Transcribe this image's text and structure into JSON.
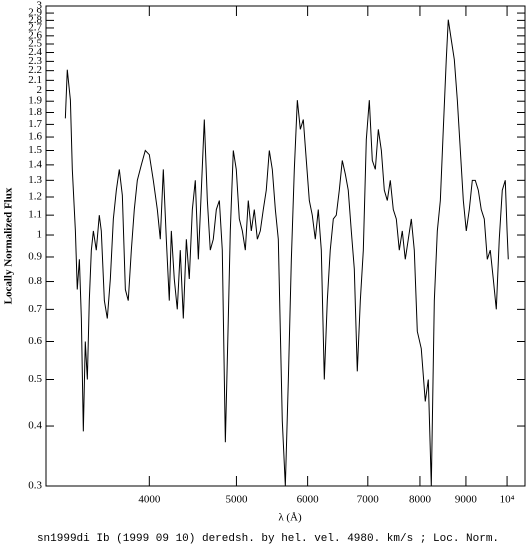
{
  "chart_data": {
    "type": "line",
    "title": "sn1999di Ib (1999 09 10) deredsh. by hel. vel.  4980. km/s ;  Loc. Norm.",
    "xlabel": "λ (Å)",
    "ylabel": "Locally Normalized Flux",
    "xscale": "log",
    "yscale": "log",
    "xlim": [
      3070,
      10470
    ],
    "ylim": [
      0.3,
      3
    ],
    "xticks": [
      4000,
      5000,
      6000,
      7000,
      8000,
      9000,
      {
        "value": 10000,
        "label": "10⁴"
      }
    ],
    "yticks": [
      0.3,
      0.4,
      0.5,
      0.6,
      0.7,
      0.8,
      0.9,
      1,
      1.1,
      1.2,
      1.3,
      1.4,
      1.5,
      1.6,
      1.7,
      1.8,
      1.9,
      2,
      2.1,
      2.2,
      2.3,
      2.4,
      2.5,
      2.6,
      2.7,
      2.8,
      2.9,
      3
    ],
    "x": [
      3226,
      3242,
      3268,
      3284,
      3310,
      3326,
      3344,
      3361,
      3378,
      3395,
      3413,
      3430,
      3448,
      3466,
      3492,
      3519,
      3537,
      3565,
      3592,
      3620,
      3648,
      3676,
      3704,
      3733,
      3762,
      3790,
      3820,
      3849,
      3879,
      3919,
      3959,
      4000,
      4041,
      4083,
      4114,
      4146,
      4178,
      4210,
      4232,
      4264,
      4297,
      4330,
      4364,
      4398,
      4431,
      4466,
      4500,
      4535,
      4570,
      4605,
      4641,
      4676,
      4712,
      4749,
      4786,
      4822,
      4860,
      4897,
      4922,
      4960,
      4998,
      5037,
      5076,
      5115,
      5154,
      5194,
      5234,
      5275,
      5315,
      5356,
      5397,
      5439,
      5481,
      5524,
      5566,
      5623,
      5667,
      5711,
      5755,
      5799,
      5844,
      5889,
      5934,
      5980,
      6026,
      6072,
      6119,
      6166,
      6214,
      6262,
      6310,
      6358,
      6408,
      6457,
      6507,
      6557,
      6608,
      6658,
      6710,
      6762,
      6814,
      6867,
      6920,
      6973,
      7027,
      7081,
      7136,
      7191,
      7247,
      7302,
      7358,
      7415,
      7472,
      7530,
      7588,
      7646,
      7705,
      7765,
      7825,
      7885,
      7946,
      8027,
      8110,
      8173,
      8236,
      8300,
      8364,
      8429,
      8493,
      8558,
      8602,
      8669,
      8736,
      8804,
      8872,
      8940,
      9008,
      9078,
      9148,
      9218,
      9290,
      9360,
      9433,
      9506,
      9579,
      9653,
      9728,
      9802,
      9878,
      9954,
      10000,
      10031
    ],
    "series": [
      {
        "color": "#000000",
        "values": [
          1.75,
          2.21,
          1.91,
          1.37,
          1.02,
          0.77,
          0.89,
          0.67,
          0.39,
          0.6,
          0.5,
          0.73,
          0.93,
          1.02,
          0.93,
          1.1,
          1.02,
          0.73,
          0.67,
          0.81,
          1.08,
          1.24,
          1.37,
          1.21,
          0.77,
          0.73,
          0.93,
          1.13,
          1.3,
          1.4,
          1.5,
          1.47,
          1.3,
          1.13,
          0.98,
          1.37,
          0.98,
          0.73,
          1.02,
          0.81,
          0.7,
          0.93,
          0.67,
          0.98,
          0.81,
          1.13,
          1.3,
          0.89,
          1.24,
          1.74,
          1.18,
          0.93,
          0.98,
          1.13,
          1.18,
          0.93,
          0.37,
          0.67,
          1.02,
          1.5,
          1.37,
          1.08,
          1.02,
          0.93,
          1.18,
          1.02,
          1.13,
          0.98,
          1.02,
          1.13,
          1.24,
          1.5,
          1.37,
          1.13,
          0.98,
          0.41,
          0.3,
          0.5,
          0.89,
          1.37,
          1.91,
          1.66,
          1.74,
          1.43,
          1.18,
          1.1,
          0.98,
          1.13,
          0.93,
          0.5,
          0.73,
          0.93,
          1.08,
          1.1,
          1.24,
          1.43,
          1.34,
          1.24,
          1.02,
          0.85,
          0.52,
          0.73,
          0.93,
          1.58,
          1.91,
          1.43,
          1.37,
          1.66,
          1.5,
          1.24,
          1.18,
          1.3,
          1.13,
          1.08,
          0.93,
          1.02,
          0.89,
          0.98,
          1.08,
          0.93,
          0.63,
          0.58,
          0.45,
          0.5,
          0.3,
          0.73,
          1.02,
          1.18,
          1.66,
          2.32,
          2.81,
          2.55,
          2.32,
          1.91,
          1.5,
          1.18,
          1.02,
          1.13,
          1.3,
          1.3,
          1.24,
          1.13,
          1.08,
          0.89,
          0.93,
          0.81,
          0.7,
          0.98,
          1.24,
          1.3,
          1.02,
          0.89
        ]
      }
    ]
  }
}
